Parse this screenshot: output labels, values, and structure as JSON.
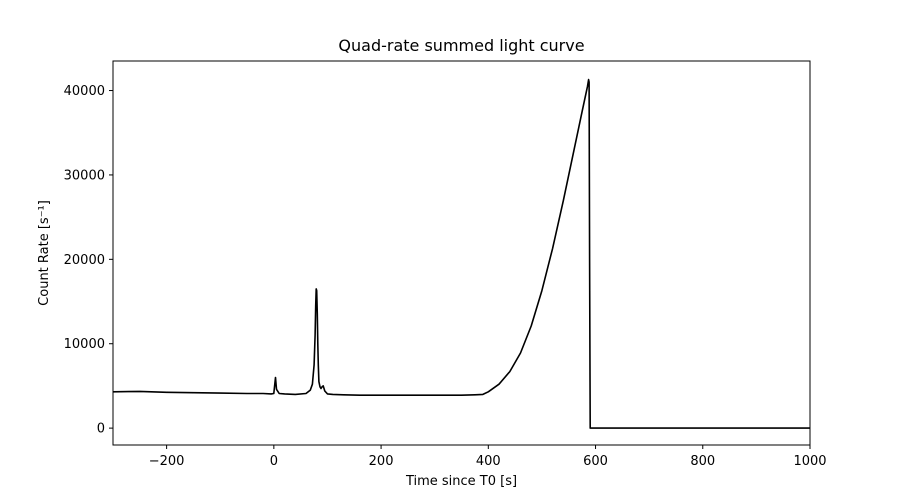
{
  "chart_data": {
    "type": "line",
    "title": "Quad-rate summed light curve",
    "xlabel": "Time since T0 [s]",
    "ylabel": "Count Rate [s⁻¹]",
    "xlim": [
      -300,
      1000
    ],
    "ylim": [
      -2000,
      43500
    ],
    "xticks": [
      -200,
      0,
      200,
      400,
      600,
      800,
      1000
    ],
    "yticks": [
      0,
      10000,
      20000,
      30000,
      40000
    ],
    "grid": false,
    "legend": "none",
    "series": [
      {
        "color": "#000000",
        "x": [
          -300,
          -250,
          -200,
          -150,
          -100,
          -50,
          -20,
          -5,
          0,
          3,
          5,
          10,
          20,
          40,
          60,
          68,
          72,
          75,
          77,
          78,
          79,
          80,
          81,
          82,
          83,
          84,
          86,
          88,
          90,
          92,
          95,
          100,
          110,
          130,
          160,
          200,
          250,
          300,
          350,
          375,
          390,
          400,
          420,
          440,
          460,
          480,
          500,
          520,
          540,
          560,
          575,
          585,
          587,
          588,
          589,
          590,
          600,
          700,
          800,
          900,
          1000
        ],
        "y": [
          4300,
          4350,
          4250,
          4200,
          4150,
          4100,
          4100,
          4050,
          4100,
          6000,
          4600,
          4100,
          4050,
          4000,
          4100,
          4500,
          5200,
          7500,
          11000,
          14500,
          16500,
          16300,
          13500,
          10000,
          7500,
          5500,
          4900,
          4700,
          4900,
          5000,
          4400,
          4050,
          4000,
          3950,
          3900,
          3900,
          3900,
          3900,
          3900,
          3950,
          4000,
          4300,
          5200,
          6700,
          8900,
          12100,
          16300,
          21300,
          27000,
          33000,
          37500,
          40500,
          41300,
          41000,
          20000,
          0,
          0,
          0,
          0,
          0,
          0
        ]
      }
    ]
  }
}
